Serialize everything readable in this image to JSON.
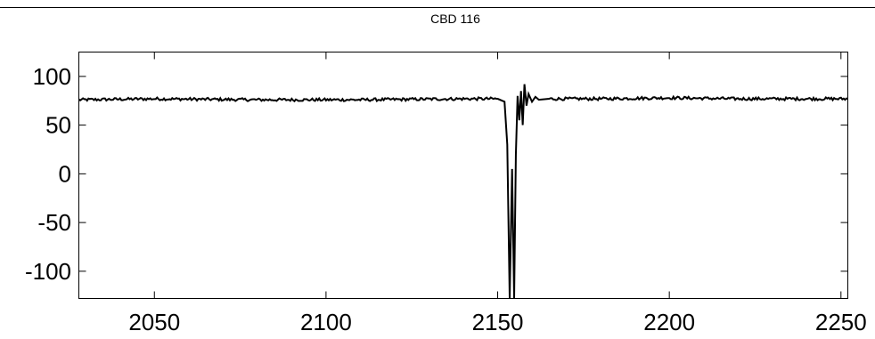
{
  "chart_data": {
    "type": "line",
    "title": "CBD 116",
    "xlabel": "",
    "ylabel": "",
    "xlim": [
      2028,
      2252
    ],
    "ylim": [
      -128,
      125
    ],
    "xticks": [
      2050,
      2100,
      2150,
      2200,
      2250
    ],
    "xtick_labels": [
      "2050",
      "2100",
      "2150",
      "2200",
      "2250"
    ],
    "yticks": [
      100,
      50,
      0,
      -50,
      -100
    ],
    "ytick_labels": [
      "100",
      "50",
      "0",
      "-50",
      "-100"
    ],
    "grid": false,
    "legend": "none",
    "line_color": "#000000",
    "series": [
      {
        "values_description": "",
        "x": [
          2028,
          2050,
          2080,
          2110,
          2140,
          2150,
          2152,
          2152.8,
          2153.5,
          2154.2,
          2154.8,
          2155.3,
          2155.8,
          2156.3,
          2156.8,
          2157.3,
          2157.8,
          2158.4,
          2159,
          2160,
          2161,
          2162,
          2165,
          2180,
          2200,
          2220,
          2252
        ],
        "y": [
          76,
          77,
          76,
          76,
          77,
          77,
          74,
          30,
          -128,
          5,
          -128,
          20,
          80,
          55,
          85,
          50,
          92,
          70,
          82,
          74,
          79,
          76,
          77,
          77,
          78,
          77,
          77
        ]
      }
    ]
  }
}
